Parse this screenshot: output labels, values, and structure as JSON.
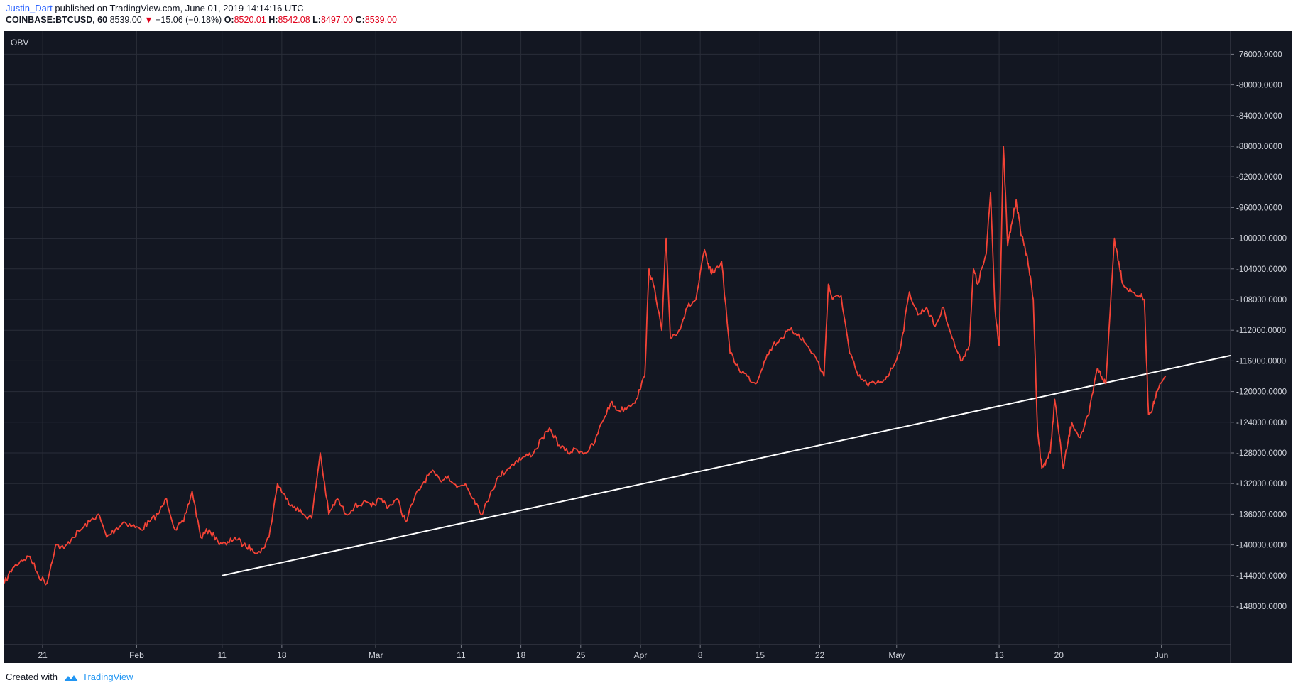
{
  "header": {
    "author": "Justin_Dart",
    "published_text": "published on TradingView.com, June 01, 2019 14:14:16 UTC",
    "symbol": "COINBASE:BTCUSD, 60",
    "price": "8539.00",
    "change_arrow": "▼",
    "change": "−15.06 (−0.18%)",
    "o_label": "O:",
    "o_value": "8520.01",
    "h_label": "H:",
    "h_value": "8542.08",
    "l_label": "L:",
    "l_value": "8497.00",
    "c_label": "C:",
    "c_value": "8539.00"
  },
  "footer": {
    "created_with": "Created with",
    "brand": "TradingView"
  },
  "colors": {
    "background": "#131722",
    "grid": "#2a2e39",
    "series": "#f44336",
    "trendline": "#ffffff",
    "axis_text": "#d1d4dc"
  },
  "chart_data": {
    "type": "line",
    "indicator_label": "OBV",
    "y_ticks": [
      "-76000.0000",
      "-80000.0000",
      "-84000.0000",
      "-88000.0000",
      "-92000.0000",
      "-96000.0000",
      "-100000.0000",
      "-104000.0000",
      "-108000.0000",
      "-112000.0000",
      "-116000.0000",
      "-120000.0000",
      "-124000.0000",
      "-128000.0000",
      "-132000.0000",
      "-136000.0000",
      "-140000.0000",
      "-144000.0000",
      "-148000.0000"
    ],
    "x_ticks": [
      {
        "label": "21",
        "day": 21
      },
      {
        "label": "Feb",
        "day": 32
      },
      {
        "label": "11",
        "day": 42
      },
      {
        "label": "18",
        "day": 49
      },
      {
        "label": "Mar",
        "day": 60
      },
      {
        "label": "11",
        "day": 70
      },
      {
        "label": "18",
        "day": 77
      },
      {
        "label": "25",
        "day": 84
      },
      {
        "label": "Apr",
        "day": 91
      },
      {
        "label": "8",
        "day": 98
      },
      {
        "label": "15",
        "day": 105
      },
      {
        "label": "22",
        "day": 112
      },
      {
        "label": "May",
        "day": 121
      },
      {
        "label": "13",
        "day": 133
      },
      {
        "label": "20",
        "day": 140
      },
      {
        "label": "Jun",
        "day": 152
      }
    ],
    "x_range_day": [
      16.5,
      160.1
    ],
    "ylim": [
      -153000,
      -73000
    ],
    "series": [
      {
        "x_day": [
          16.5,
          17.5,
          18.5,
          19.5,
          20.5,
          21.5,
          22.5,
          23.5,
          24.5,
          25.5,
          26.5,
          27.5,
          28.5,
          29.5,
          30.5,
          31.5,
          32.5,
          33.5,
          34.5,
          35.5,
          36.5,
          37.5,
          38.5,
          39.5,
          40.5,
          41.5,
          42.5,
          43.5,
          44.5,
          45.5,
          46.5,
          47.5,
          48.5,
          49.5,
          50.5,
          51.5,
          52.5,
          53.5,
          54.5,
          55.5,
          56.5,
          57.5,
          58.5,
          59.5,
          60.5,
          61.5,
          62.5,
          63.5,
          64.5,
          65.5,
          66.5,
          67.5,
          68.5,
          69.5,
          70.5,
          71.5,
          72.5,
          73.5,
          74.5,
          75.5,
          76.5,
          77.5,
          78.5,
          79.5,
          80.5,
          81.5,
          82.5,
          83.5,
          84.5,
          85.5,
          86.5,
          87.5,
          88.5,
          89.5,
          90.5,
          91.5,
          92.0,
          92.5,
          93.5,
          94.0,
          94.5,
          95.5,
          96.5,
          97.5,
          98.5,
          99.0,
          99.5,
          100.5,
          101.5,
          102.5,
          103.5,
          104.5,
          105.5,
          106.5,
          107.5,
          108.5,
          109.5,
          110.5,
          111.5,
          112.5,
          113.0,
          113.5,
          114.5,
          115.5,
          116.5,
          117.5,
          118.5,
          119.5,
          120.5,
          121.5,
          122.5,
          123.5,
          124.5,
          125.5,
          126.5,
          127.5,
          128.5,
          129.5,
          130.0,
          130.5,
          131.5,
          132.0,
          132.5,
          133.0,
          133.5,
          134.0,
          134.5,
          135.0,
          135.5,
          136.0,
          136.5,
          137.0,
          137.5,
          138.0,
          138.5,
          139.0,
          139.5,
          140.5,
          141.0,
          141.5,
          142.5,
          143.5,
          144.5,
          145.0,
          145.5,
          146.5,
          147.0,
          147.5,
          148.5,
          149.5,
          150.0,
          150.5,
          151.0,
          151.5,
          152.5
        ],
        "values": [
          -145000,
          -143000,
          -142000,
          -141500,
          -144000,
          -145000,
          -140000,
          -140500,
          -139000,
          -138000,
          -137000,
          -136000,
          -139000,
          -138000,
          -137000,
          -137500,
          -138000,
          -137000,
          -136000,
          -134000,
          -138000,
          -137000,
          -133000,
          -139000,
          -138000,
          -139500,
          -140000,
          -139000,
          -140000,
          -140500,
          -141000,
          -139000,
          -132000,
          -134000,
          -135000,
          -136000,
          -136500,
          -128000,
          -136000,
          -134000,
          -136000,
          -135000,
          -134500,
          -135000,
          -134000,
          -135000,
          -134000,
          -137000,
          -134000,
          -132000,
          -130500,
          -131500,
          -131000,
          -132500,
          -132000,
          -134000,
          -136000,
          -133000,
          -131000,
          -130000,
          -129000,
          -128500,
          -128000,
          -126000,
          -125000,
          -127000,
          -128000,
          -127500,
          -128000,
          -127000,
          -124000,
          -121500,
          -122500,
          -122000,
          -121000,
          -118000,
          -104000,
          -106000,
          -112000,
          -100000,
          -113000,
          -112000,
          -109000,
          -108000,
          -101500,
          -104000,
          -104500,
          -103000,
          -115000,
          -117000,
          -118000,
          -119000,
          -116000,
          -114000,
          -113000,
          -112000,
          -112500,
          -114000,
          -115500,
          -118000,
          -106000,
          -108000,
          -107500,
          -115000,
          -118000,
          -119000,
          -119000,
          -118500,
          -117000,
          -114000,
          -107000,
          -110000,
          -109000,
          -111500,
          -109000,
          -113000,
          -116000,
          -114000,
          -104000,
          -106000,
          -102000,
          -94000,
          -109000,
          -114000,
          -88000,
          -101000,
          -98000,
          -95000,
          -99000,
          -101000,
          -104000,
          -108000,
          -125000,
          -130000,
          -129000,
          -128000,
          -121000,
          -130000,
          -127000,
          -124000,
          -126000,
          -123000,
          -117000,
          -118000,
          -119000,
          -100000,
          -103000,
          -106000,
          -107000,
          -107500,
          -108000,
          -123000,
          -122000,
          -120000,
          -118000
        ]
      }
    ],
    "trendline": {
      "x1_day": 42.0,
      "y1": -144000,
      "x2_day": 160.1,
      "y2": -115300
    }
  }
}
